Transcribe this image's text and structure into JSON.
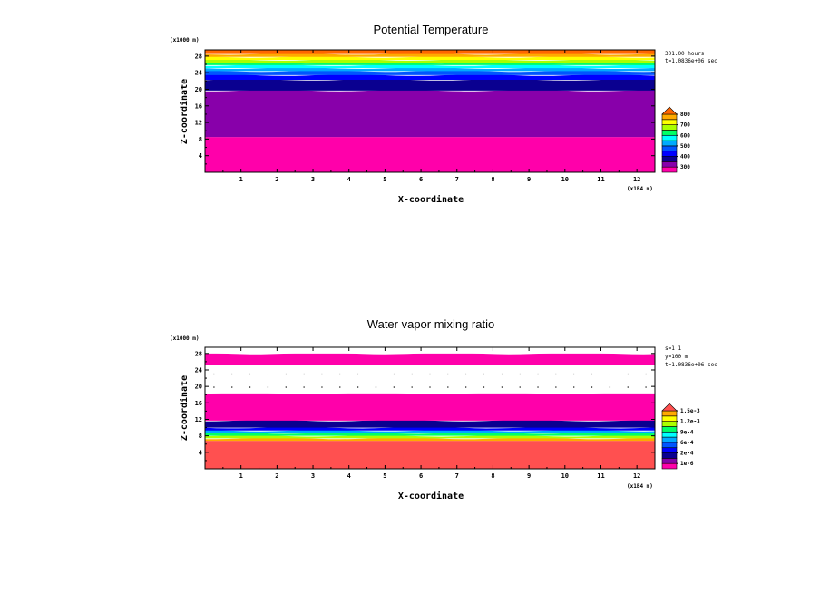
{
  "chart_data": [
    {
      "type": "heatmap",
      "title": "Potential Temperature",
      "xlabel": "X-coordinate",
      "ylabel": "Z-coordinate",
      "x_unit": "(x1E4 m)",
      "y_unit": "(x1000 m)",
      "x_ticks": [
        "1",
        "2",
        "3",
        "4",
        "5",
        "6",
        "7",
        "8",
        "9",
        "10",
        "11",
        "12"
      ],
      "y_ticks": [
        "4",
        "8",
        "12",
        "16",
        "20",
        "24",
        "28"
      ],
      "xlim": [
        0,
        12.5
      ],
      "ylim": [
        0,
        29.5
      ],
      "info_lines": [
        "301.00 hours",
        "t=1.0836e+06 sec"
      ],
      "colorbar": {
        "labels": [
          "300",
          "400",
          "500",
          "600",
          "700",
          "800"
        ],
        "colors": [
          "#ff00aa",
          "#8800aa",
          "#0a0090",
          "#0000ff",
          "#0055ff",
          "#00aaff",
          "#00ffff",
          "#00ff66",
          "#aaff00",
          "#ffff00",
          "#ffaa00",
          "#ff6600"
        ]
      },
      "bands": [
        {
          "z0": 0,
          "z1": 8.5,
          "color": "#ff00aa"
        },
        {
          "z0": 8.5,
          "z1": 19.7,
          "color": "#8800aa"
        },
        {
          "z0": 19.7,
          "z1": 22.3,
          "color": "#0a0090"
        },
        {
          "z0": 22.3,
          "z1": 23.4,
          "color": "#0000ff"
        },
        {
          "z0": 23.4,
          "z1": 24.4,
          "color": "#0055ff"
        },
        {
          "z0": 24.4,
          "z1": 25.1,
          "color": "#00aaff"
        },
        {
          "z0": 25.1,
          "z1": 25.8,
          "color": "#00ffff"
        },
        {
          "z0": 25.8,
          "z1": 26.4,
          "color": "#00ff66"
        },
        {
          "z0": 26.4,
          "z1": 27.1,
          "color": "#aaff00"
        },
        {
          "z0": 27.1,
          "z1": 27.8,
          "color": "#ffff00"
        },
        {
          "z0": 27.8,
          "z1": 28.5,
          "color": "#ffaa00"
        },
        {
          "z0": 28.5,
          "z1": 29.5,
          "color": "#ff6600"
        }
      ]
    },
    {
      "type": "heatmap",
      "title": "Water vapor mixing ratio",
      "xlabel": "X-coordinate",
      "ylabel": "Z-coordinate",
      "x_unit": "(x1E4 m)",
      "y_unit": "(x1000 m)",
      "x_ticks": [
        "1",
        "2",
        "3",
        "4",
        "5",
        "6",
        "7",
        "8",
        "9",
        "10",
        "11",
        "12"
      ],
      "y_ticks": [
        "4",
        "8",
        "12",
        "16",
        "20",
        "24",
        "28"
      ],
      "xlim": [
        0,
        12.5
      ],
      "ylim": [
        0,
        29.5
      ],
      "info_lines": [
        "s=1 1",
        "y=100 m",
        "t=1.0836e+06 sec"
      ],
      "colorbar": {
        "labels": [
          "1e-6",
          "2e-4",
          "6e-4",
          "9e-4",
          "1.2e-3",
          "1.5e-3"
        ],
        "colors": [
          "#ff00aa",
          "#8800aa",
          "#0a0090",
          "#0000ff",
          "#0055ff",
          "#00aaff",
          "#00ffff",
          "#00ff66",
          "#aaff00",
          "#ffff00",
          "#ffaa00",
          "#ff5050"
        ]
      },
      "bands": [
        {
          "z0": 0,
          "z1": 6.8,
          "color": "#ff5050"
        },
        {
          "z0": 6.8,
          "z1": 7.4,
          "color": "#ffaa00"
        },
        {
          "z0": 7.4,
          "z1": 8.0,
          "color": "#aaff00"
        },
        {
          "z0": 8.0,
          "z1": 8.7,
          "color": "#00ff66"
        },
        {
          "z0": 8.7,
          "z1": 9.3,
          "color": "#00aaff"
        },
        {
          "z0": 9.3,
          "z1": 10.0,
          "color": "#0000ff"
        },
        {
          "z0": 10.0,
          "z1": 11.7,
          "color": "#0a0090"
        },
        {
          "z0": 11.7,
          "z1": 18.3,
          "color": "#ff00aa"
        },
        {
          "z0": 18.3,
          "z1": 25.3,
          "color": "#ffffff"
        },
        {
          "z0": 25.3,
          "z1": 28.0,
          "color": "#ff00aa"
        },
        {
          "z0": 28.0,
          "z1": 29.5,
          "color": "#ffffff"
        }
      ]
    }
  ]
}
